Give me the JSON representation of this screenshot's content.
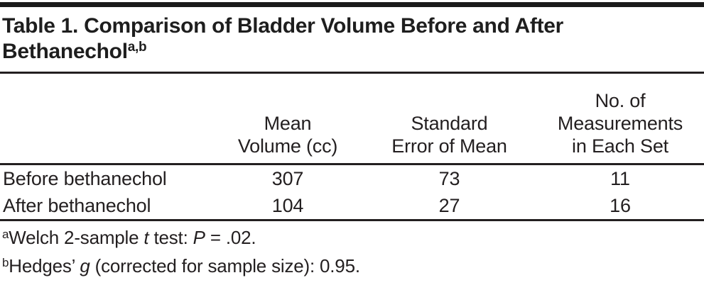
{
  "title": {
    "line1": "Table 1. Comparison of Bladder Volume Before and After",
    "line2": "Bethanechol",
    "superscript": "a,b"
  },
  "chart_data": {
    "type": "table",
    "title": "Table 1. Comparison of Bladder Volume Before and After Bethanechol",
    "title_footnote_markers": "a,b",
    "columns": [
      "",
      "Mean Volume (cc)",
      "Standard Error of Mean",
      "No. of Measurements in Each Set"
    ],
    "rows": [
      [
        "Before bethanechol",
        307,
        73,
        11
      ],
      [
        "After bethanechol",
        104,
        27,
        16
      ]
    ]
  },
  "table": {
    "column_headers_display": {
      "mean_volume": "Mean\nVolume (cc)",
      "standard_error": "Standard\nError of Mean",
      "n_measurements": "No. of\nMeasurements\nin Each Set"
    }
  },
  "footnotes": {
    "a": {
      "marker": "a",
      "segments": [
        "Welch 2-sample ",
        "t",
        " test: ",
        "P",
        " = .02."
      ]
    },
    "b": {
      "marker": "b",
      "segments": [
        "Hedges’ ",
        "g",
        " (corrected for sample size): 0.95."
      ]
    }
  },
  "colors": {
    "text": "#231f20",
    "rule": "#231f20",
    "top_bar": "#1a1a1a",
    "background": "#ffffff"
  }
}
